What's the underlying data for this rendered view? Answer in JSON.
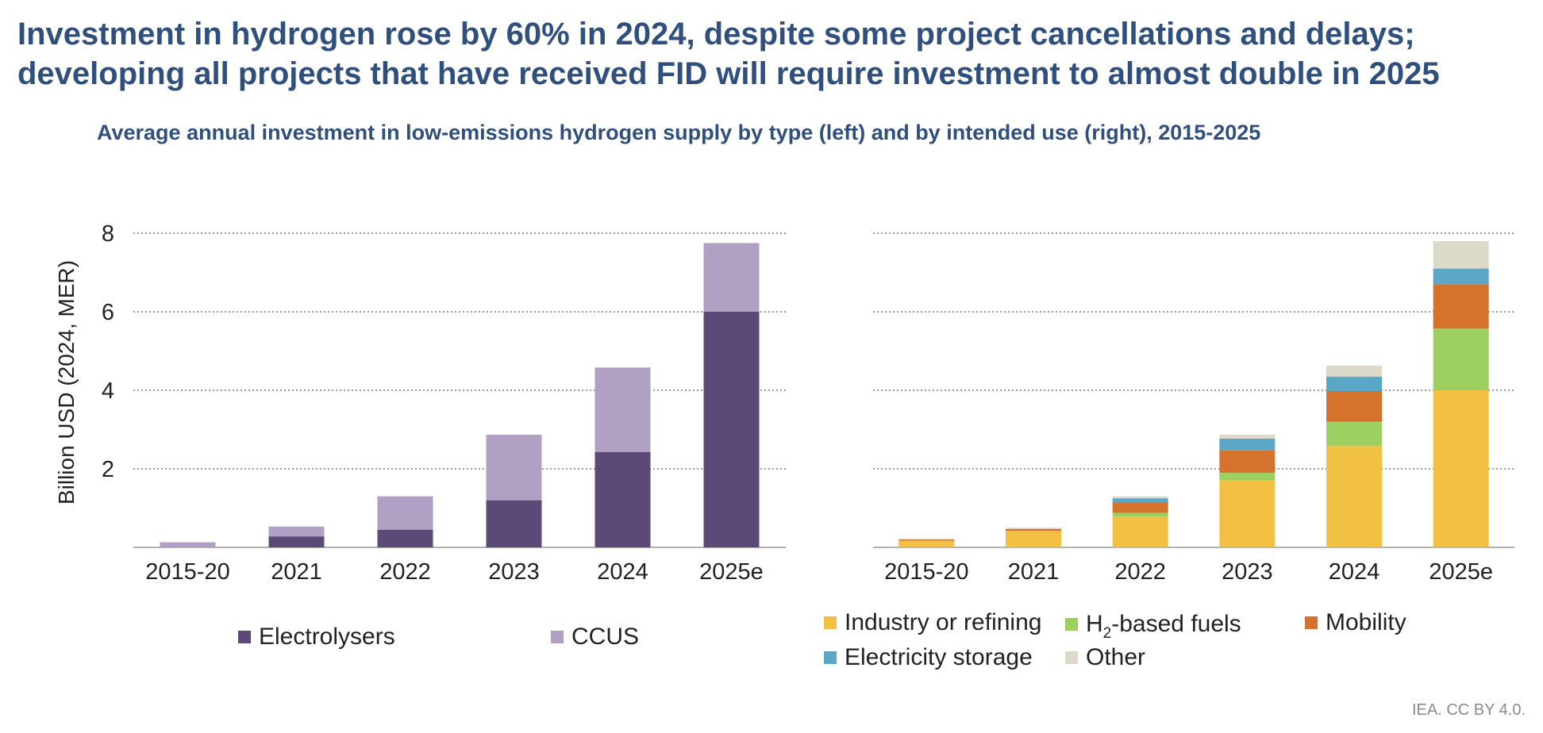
{
  "title_line1": "Investment in hydrogen rose by 60% in 2024, despite some project cancellations and delays;",
  "title_line2": "developing all projects that have received FID will require investment to almost double in 2025",
  "subtitle": "Average annual investment in low-emissions hydrogen supply by type (left) and by intended use (right), 2015-2025",
  "credit": "IEA. CC BY 4.0.",
  "legend_left": [
    {
      "label": "Electrolysers",
      "color": "#5b4a77"
    },
    {
      "label": "CCUS",
      "color": "#afa0c4"
    }
  ],
  "legend_right": [
    {
      "label": "Industry or refining",
      "color": "#f2c144"
    },
    {
      "label_prefix": "H",
      "label_sub": "2",
      "label_suffix": "-based fuels",
      "color": "#9dd060"
    },
    {
      "label": "Mobility",
      "color": "#d5722b"
    },
    {
      "label": "Electricity storage",
      "color": "#5aa7c8"
    },
    {
      "label": "Other",
      "color": "#ddd9c8"
    }
  ],
  "chart_data": [
    {
      "type": "bar",
      "stacked": true,
      "categories": [
        "2015-20",
        "2021",
        "2022",
        "2023",
        "2024",
        "2025e"
      ],
      "ylabel": "Billion USD (2024, MER)",
      "yticks": [
        2,
        4,
        6,
        8
      ],
      "ylim": [
        0,
        8
      ],
      "grid": "horizontal dotted",
      "legend_position": "bottom",
      "series": [
        {
          "name": "Electrolysers",
          "color": "#5b4a77",
          "values": [
            0.0,
            0.28,
            0.45,
            1.2,
            2.43,
            6.0
          ]
        },
        {
          "name": "CCUS",
          "color": "#afa0c4",
          "values": [
            0.13,
            0.25,
            0.85,
            1.67,
            2.15,
            1.75
          ]
        }
      ]
    },
    {
      "type": "bar",
      "stacked": true,
      "categories": [
        "2015-20",
        "2021",
        "2022",
        "2023",
        "2024",
        "2025e"
      ],
      "ylim": [
        0,
        8
      ],
      "grid": "horizontal dotted",
      "legend_position": "bottom",
      "series": [
        {
          "name": "Industry or refining",
          "color": "#f2c144",
          "values": [
            0.17,
            0.42,
            0.78,
            1.7,
            2.58,
            4.0
          ]
        },
        {
          "name": "H2-based fuels",
          "color": "#9dd060",
          "values": [
            0.0,
            0.0,
            0.1,
            0.2,
            0.62,
            1.57
          ]
        },
        {
          "name": "Mobility",
          "color": "#d5722b",
          "values": [
            0.03,
            0.05,
            0.27,
            0.57,
            0.78,
            1.13
          ]
        },
        {
          "name": "Electricity storage",
          "color": "#5aa7c8",
          "values": [
            0.0,
            0.0,
            0.1,
            0.3,
            0.37,
            0.4
          ]
        },
        {
          "name": "Other",
          "color": "#ddd9c8",
          "values": [
            0.02,
            0.03,
            0.05,
            0.1,
            0.28,
            0.7
          ]
        }
      ]
    }
  ]
}
